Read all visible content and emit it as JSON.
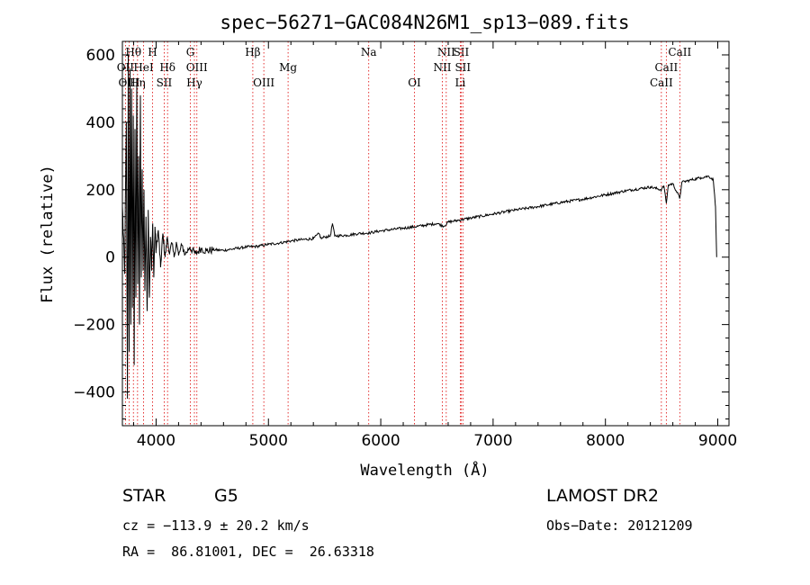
{
  "chart_data": {
    "type": "line",
    "title": "spec−56271−GAC084N26M1_sp13−089.fits",
    "xlabel": "Wavelength (Å)",
    "ylabel": "Flux (relative)",
    "xlim": [
      3700,
      9100
    ],
    "ylim": [
      -500,
      640
    ],
    "xticks": [
      4000,
      5000,
      6000,
      7000,
      8000,
      9000
    ],
    "yticks": [
      -400,
      -200,
      0,
      200,
      400,
      600
    ],
    "ytick_labels": [
      "−400",
      "−200",
      "0",
      "200",
      "400",
      "600"
    ],
    "series_points": [
      [
        3700,
        150
      ],
      [
        3720,
        -50
      ],
      [
        3735,
        400
      ],
      [
        3745,
        -420
      ],
      [
        3752,
        600
      ],
      [
        3760,
        -280
      ],
      [
        3768,
        560
      ],
      [
        3775,
        -200
      ],
      [
        3782,
        500
      ],
      [
        3790,
        -150
      ],
      [
        3797,
        420
      ],
      [
        3805,
        -320
      ],
      [
        3812,
        380
      ],
      [
        3820,
        -120
      ],
      [
        3828,
        520
      ],
      [
        3836,
        -80
      ],
      [
        3844,
        300
      ],
      [
        3852,
        -200
      ],
      [
        3860,
        480
      ],
      [
        3868,
        -60
      ],
      [
        3876,
        260
      ],
      [
        3884,
        -40
      ],
      [
        3892,
        200
      ],
      [
        3900,
        -100
      ],
      [
        3910,
        120
      ],
      [
        3920,
        -160
      ],
      [
        3930,
        140
      ],
      [
        3940,
        -120
      ],
      [
        3950,
        60
      ],
      [
        3960,
        -40
      ],
      [
        3970,
        100
      ],
      [
        3980,
        -60
      ],
      [
        3990,
        90
      ],
      [
        4000,
        20
      ],
      [
        4020,
        80
      ],
      [
        4040,
        -30
      ],
      [
        4060,
        70
      ],
      [
        4080,
        0
      ],
      [
        4100,
        60
      ],
      [
        4120,
        10
      ],
      [
        4140,
        40
      ],
      [
        4160,
        0
      ],
      [
        4180,
        45
      ],
      [
        4200,
        5
      ],
      [
        4230,
        35
      ],
      [
        4260,
        8
      ],
      [
        4300,
        30
      ],
      [
        4350,
        10
      ],
      [
        4400,
        25
      ],
      [
        4450,
        18
      ],
      [
        4500,
        22
      ],
      [
        4600,
        20
      ],
      [
        4700,
        25
      ],
      [
        4800,
        30
      ],
      [
        4900,
        32
      ],
      [
        5000,
        38
      ],
      [
        5100,
        42
      ],
      [
        5200,
        48
      ],
      [
        5300,
        52
      ],
      [
        5400,
        55
      ],
      [
        5450,
        70
      ],
      [
        5470,
        55
      ],
      [
        5500,
        60
      ],
      [
        5550,
        62
      ],
      [
        5570,
        100
      ],
      [
        5590,
        63
      ],
      [
        5700,
        65
      ],
      [
        5800,
        70
      ],
      [
        5900,
        72
      ],
      [
        6000,
        78
      ],
      [
        6100,
        82
      ],
      [
        6200,
        86
      ],
      [
        6300,
        90
      ],
      [
        6400,
        95
      ],
      [
        6500,
        100
      ],
      [
        6563,
        92
      ],
      [
        6600,
        104
      ],
      [
        6700,
        110
      ],
      [
        6800,
        116
      ],
      [
        6900,
        122
      ],
      [
        7000,
        128
      ],
      [
        7200,
        140
      ],
      [
        7400,
        150
      ],
      [
        7600,
        162
      ],
      [
        7800,
        172
      ],
      [
        8000,
        185
      ],
      [
        8200,
        198
      ],
      [
        8400,
        208
      ],
      [
        8498,
        200
      ],
      [
        8520,
        212
      ],
      [
        8542,
        160
      ],
      [
        8560,
        214
      ],
      [
        8600,
        218
      ],
      [
        8662,
        175
      ],
      [
        8680,
        222
      ],
      [
        8750,
        228
      ],
      [
        8850,
        236
      ],
      [
        8920,
        240
      ],
      [
        8960,
        230
      ],
      [
        8980,
        150
      ],
      [
        8990,
        0
      ]
    ],
    "line_markers": [
      {
        "label": "Hθ",
        "x": 3798,
        "row": 1
      },
      {
        "label": "OII",
        "x": 3727,
        "row": 2
      },
      {
        "label": "OIII",
        "x": 3760,
        "row": 3
      },
      {
        "label": "HeI",
        "x": 3889,
        "row": 2
      },
      {
        "label": "Hη",
        "x": 3835,
        "row": 3
      },
      {
        "label": "H",
        "x": 3968,
        "row": 1
      },
      {
        "label": "Hδ",
        "x": 4102,
        "row": 2
      },
      {
        "label": "SII",
        "x": 4072,
        "row": 3
      },
      {
        "label": "G",
        "x": 4305,
        "row": 1
      },
      {
        "label": "OIII",
        "x": 4363,
        "row": 2
      },
      {
        "label": "Hγ",
        "x": 4341,
        "row": 3
      },
      {
        "label": "Hβ",
        "x": 4861,
        "row": 1
      },
      {
        "label": "Mg",
        "x": 5175,
        "row": 2
      },
      {
        "label": "OIII",
        "x": 4959,
        "row": 3
      },
      {
        "label": "Na",
        "x": 5893,
        "row": 1
      },
      {
        "label": "OI",
        "x": 6300,
        "row": 3
      },
      {
        "label": "NII",
        "x": 6583,
        "row": 1
      },
      {
        "label": "NII",
        "x": 6548,
        "row": 2
      },
      {
        "label": "SII",
        "x": 6716,
        "row": 1
      },
      {
        "label": "SII",
        "x": 6731,
        "row": 2
      },
      {
        "label": "Li",
        "x": 6708,
        "row": 3
      },
      {
        "label": "CaII",
        "x": 8662,
        "row": 1
      },
      {
        "label": "CaII",
        "x": 8542,
        "row": 2
      },
      {
        "label": "CaII",
        "x": 8498,
        "row": 3
      }
    ],
    "colors": {
      "spectrum": "#000000",
      "marker": "#dd0000",
      "axis": "#000000"
    }
  },
  "info": {
    "object_class": "STAR",
    "subclass": "G5",
    "survey": "LAMOST DR2",
    "cz": "cz = −113.9 ± 20.2 km/s",
    "obs_date": "Obs−Date: 20121209",
    "coords": "RA =  86.81001, DEC =  26.63318"
  }
}
